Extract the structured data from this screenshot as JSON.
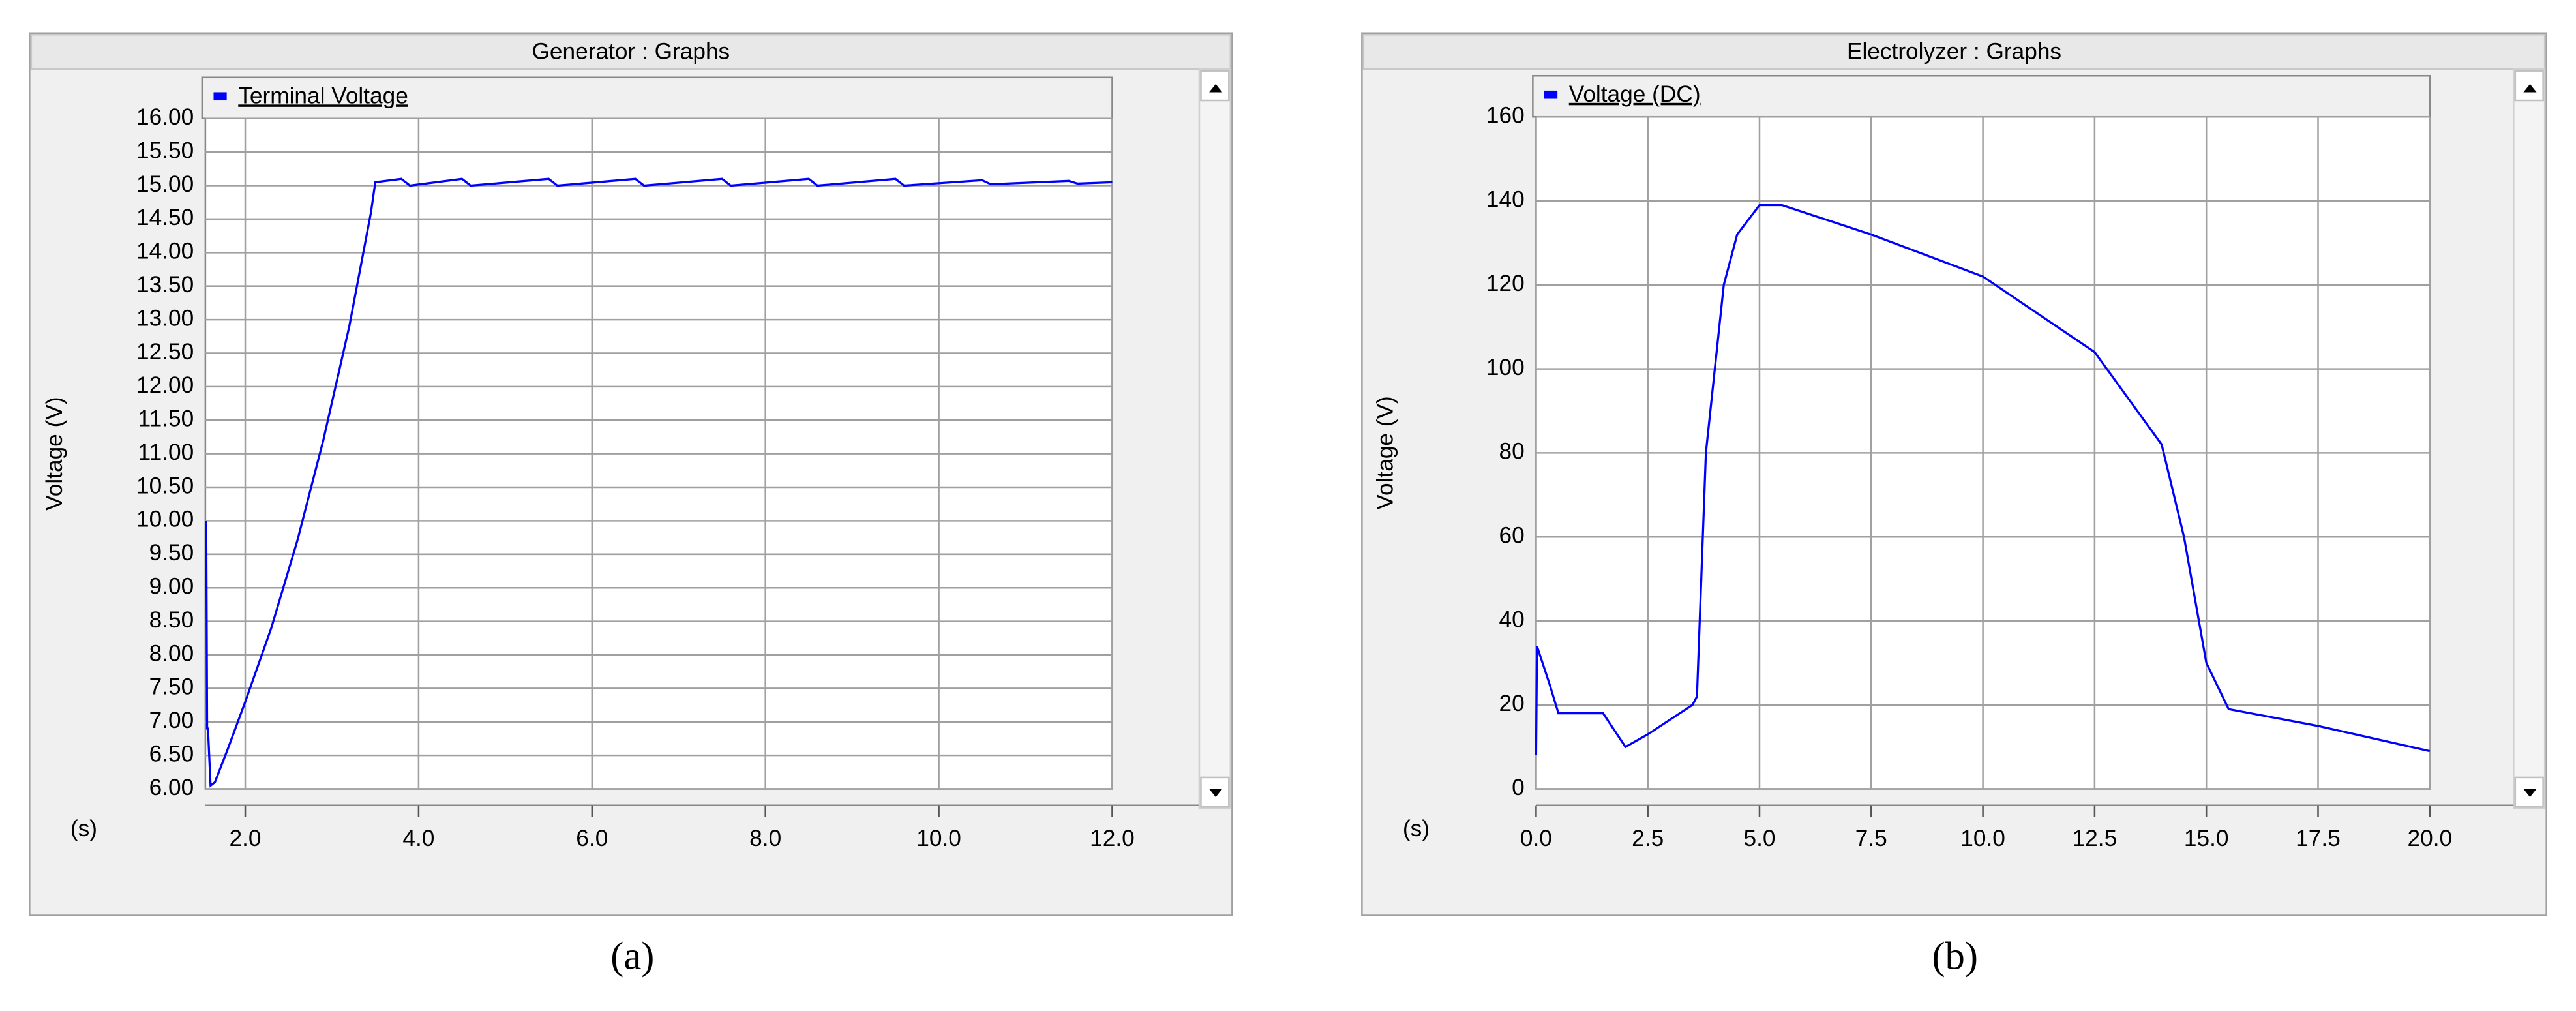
{
  "chart_data": [
    {
      "type": "line",
      "title": "Generator : Graphs",
      "caption": "(a)",
      "ylabel": "Voltage (V)",
      "xlabel": "(s)",
      "grid": true,
      "xlim": [
        1.54,
        12
      ],
      "ylim": [
        6,
        16
      ],
      "xticks": [
        {
          "value": 2,
          "label": "2.0"
        },
        {
          "value": 4,
          "label": "4.0"
        },
        {
          "value": 6,
          "label": "6.0"
        },
        {
          "value": 8,
          "label": "8.0"
        },
        {
          "value": 10,
          "label": "10.0"
        },
        {
          "value": 12,
          "label": "12.0"
        }
      ],
      "yticks": [
        {
          "value": 6,
          "label": "6.00"
        },
        {
          "value": 6.5,
          "label": "6.50"
        },
        {
          "value": 7,
          "label": "7.00"
        },
        {
          "value": 7.5,
          "label": "7.50"
        },
        {
          "value": 8,
          "label": "8.00"
        },
        {
          "value": 8.5,
          "label": "8.50"
        },
        {
          "value": 9,
          "label": "9.00"
        },
        {
          "value": 9.5,
          "label": "9.50"
        },
        {
          "value": 10,
          "label": "10.00"
        },
        {
          "value": 10.5,
          "label": "10.50"
        },
        {
          "value": 11,
          "label": "11.00"
        },
        {
          "value": 11.5,
          "label": "11.50"
        },
        {
          "value": 12,
          "label": "12.00"
        },
        {
          "value": 12.5,
          "label": "12.50"
        },
        {
          "value": 13,
          "label": "13.00"
        },
        {
          "value": 13.5,
          "label": "13.50"
        },
        {
          "value": 14,
          "label": "14.00"
        },
        {
          "value": 14.5,
          "label": "14.50"
        },
        {
          "value": 15,
          "label": "15.00"
        },
        {
          "value": 15.5,
          "label": "15.50"
        },
        {
          "value": 16,
          "label": "16.00"
        }
      ],
      "series": [
        {
          "name": "Terminal Voltage",
          "color": "#0000ff",
          "x": [
            1.55,
            1.56,
            1.57,
            1.6,
            1.65,
            1.8,
            2.0,
            2.3,
            2.6,
            2.9,
            3.2,
            3.45,
            3.5,
            3.8,
            3.9,
            4.5,
            4.6,
            5.5,
            5.6,
            6.5,
            6.6,
            7.5,
            7.6,
            8.5,
            8.6,
            9.5,
            9.6,
            10.5,
            10.6,
            11.5,
            11.6,
            12.0
          ],
          "values": [
            10.0,
            6.9,
            6.9,
            6.05,
            6.1,
            6.6,
            7.3,
            8.4,
            9.7,
            11.2,
            12.9,
            14.6,
            15.05,
            15.1,
            15.0,
            15.1,
            15.0,
            15.1,
            15.0,
            15.1,
            15.0,
            15.1,
            15.0,
            15.1,
            15.0,
            15.1,
            15.0,
            15.08,
            15.02,
            15.07,
            15.03,
            15.05
          ]
        }
      ]
    },
    {
      "type": "line",
      "title": "Electrolyzer : Graphs",
      "caption": "(b)",
      "ylabel": "Voltage (V)",
      "xlabel": "(s)",
      "grid": true,
      "xlim": [
        0,
        20
      ],
      "ylim": [
        0,
        160
      ],
      "xticks": [
        {
          "value": 0,
          "label": "0.0"
        },
        {
          "value": 2.5,
          "label": "2.5"
        },
        {
          "value": 5,
          "label": "5.0"
        },
        {
          "value": 7.5,
          "label": "7.5"
        },
        {
          "value": 10,
          "label": "10.0"
        },
        {
          "value": 12.5,
          "label": "12.5"
        },
        {
          "value": 15,
          "label": "15.0"
        },
        {
          "value": 17.5,
          "label": "17.5"
        },
        {
          "value": 20,
          "label": "20.0"
        }
      ],
      "yticks": [
        0,
        20,
        40,
        60,
        80,
        100,
        120,
        140,
        160
      ],
      "series": [
        {
          "name": "Voltage (DC)",
          "color": "#0000ff",
          "x": [
            0,
            0.02,
            0.3,
            0.5,
            1.5,
            2.0,
            2.5,
            3.5,
            3.6,
            3.8,
            4.2,
            4.5,
            5.0,
            5.5,
            7.5,
            10,
            12.5,
            14,
            14.5,
            15,
            15.5,
            17.5,
            20
          ],
          "values": [
            8,
            34,
            25,
            18,
            18,
            10,
            13,
            20,
            22,
            80,
            120,
            132,
            139,
            139,
            132,
            122,
            104,
            82,
            60,
            30,
            19,
            15,
            9
          ]
        }
      ]
    }
  ]
}
